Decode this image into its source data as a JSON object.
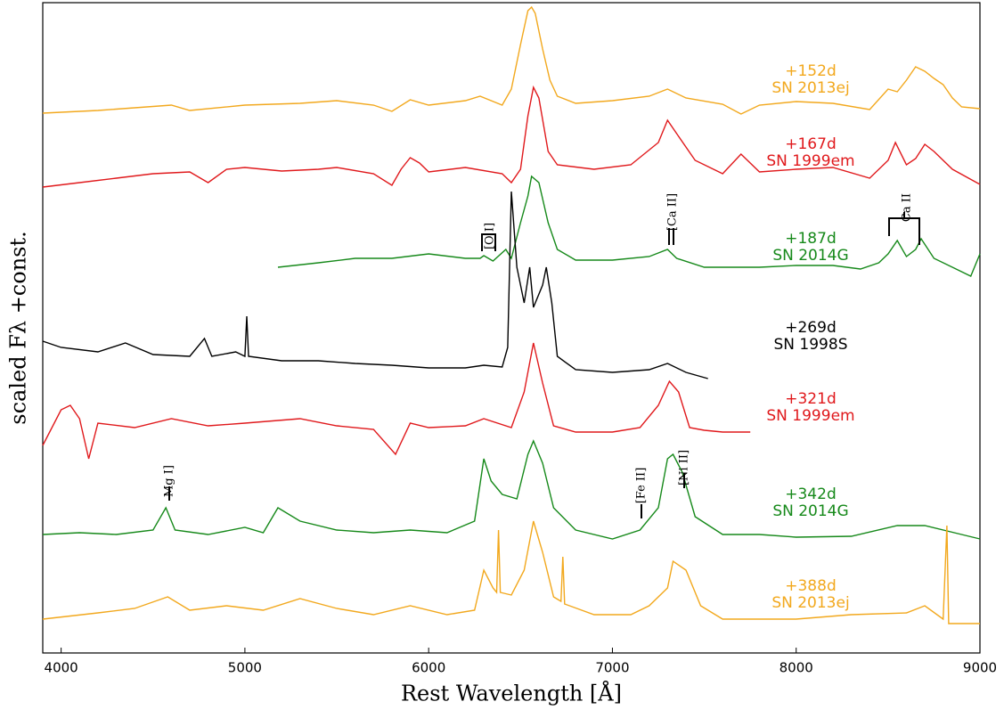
{
  "chart_data": {
    "type": "line",
    "xlabel": "Rest Wavelength [Å]",
    "ylabel": "scaled Fλ +const.",
    "xlim": [
      3900,
      9000
    ],
    "xticks": [
      4000,
      5000,
      6000,
      7000,
      8000,
      9000
    ],
    "ylim": [
      0,
      73
    ],
    "annotations": [
      "[O I]",
      "[Ca II]",
      "Ca II",
      "Mg I]",
      "[Fe II]",
      "[Ni II]"
    ],
    "series": [
      {
        "name": "SN 2013ej",
        "phase": "+152d",
        "color": "#f2a81d",
        "x": [
          3900,
          4200,
          4600,
          4700,
          5000,
          5300,
          5500,
          5700,
          5800,
          5900,
          6000,
          6200,
          6280,
          6400,
          6450,
          6500,
          6540,
          6560,
          6580,
          6620,
          6660,
          6700,
          6800,
          7000,
          7200,
          7300,
          7400,
          7600,
          7700,
          7800,
          8000,
          8200,
          8400,
          8500,
          8550,
          8600,
          8650,
          8700,
          8750,
          8800,
          8850,
          8900,
          9000
        ],
        "values": [
          60.6,
          60.9,
          61.5,
          60.9,
          61.5,
          61.7,
          62.0,
          61.5,
          60.8,
          62.1,
          61.5,
          62.0,
          62.5,
          61.5,
          63.3,
          68.3,
          72.1,
          72.5,
          71.8,
          67.8,
          64.3,
          62.5,
          61.7,
          62.0,
          62.5,
          63.3,
          62.3,
          61.6,
          60.5,
          61.5,
          61.9,
          61.7,
          61.0,
          63.3,
          63.0,
          64.3,
          65.8,
          65.3,
          64.5,
          63.8,
          62.3,
          61.3,
          61.1
        ]
      },
      {
        "name": "SN 1999em",
        "phase": "+167d",
        "color": "#e0191c",
        "x": [
          3900,
          4100,
          4300,
          4500,
          4700,
          4800,
          4900,
          5000,
          5200,
          5400,
          5500,
          5700,
          5800,
          5850,
          5900,
          5950,
          6000,
          6200,
          6400,
          6450,
          6500,
          6540,
          6570,
          6600,
          6650,
          6700,
          6900,
          7100,
          7250,
          7300,
          7350,
          7450,
          7600,
          7700,
          7800,
          8000,
          8200,
          8400,
          8500,
          8540,
          8600,
          8650,
          8700,
          8750,
          8850,
          9000
        ],
        "values": [
          52.3,
          52.8,
          53.3,
          53.8,
          54.0,
          52.8,
          54.3,
          54.5,
          54.1,
          54.3,
          54.5,
          53.8,
          52.5,
          54.3,
          55.6,
          55.0,
          54.0,
          54.5,
          53.8,
          52.8,
          54.3,
          60.3,
          63.5,
          62.3,
          56.3,
          54.8,
          54.3,
          54.8,
          57.3,
          59.8,
          58.3,
          55.3,
          53.8,
          56.0,
          54.0,
          54.3,
          54.5,
          53.3,
          55.3,
          57.3,
          54.8,
          55.5,
          57.1,
          56.3,
          54.3,
          52.6
        ]
      },
      {
        "name": "SN 2014G",
        "phase": "+187d",
        "color": "#16891a",
        "x": [
          5180,
          5400,
          5600,
          5800,
          6000,
          6200,
          6280,
          6300,
          6350,
          6420,
          6450,
          6500,
          6540,
          6560,
          6600,
          6650,
          6700,
          6800,
          7000,
          7200,
          7300,
          7350,
          7500,
          7800,
          8000,
          8200,
          8350,
          8450,
          8500,
          8550,
          8600,
          8650,
          8680,
          8750,
          8850,
          8950,
          9000
        ],
        "values": [
          43.3,
          43.8,
          44.3,
          44.3,
          44.8,
          44.3,
          44.3,
          44.6,
          44.0,
          45.3,
          44.3,
          48.3,
          51.3,
          53.5,
          52.8,
          48.3,
          45.3,
          44.1,
          44.1,
          44.5,
          45.3,
          44.3,
          43.3,
          43.3,
          43.5,
          43.5,
          43.1,
          43.8,
          44.8,
          46.3,
          44.5,
          45.3,
          46.5,
          44.3,
          43.3,
          42.3,
          44.8
        ]
      },
      {
        "name": "SN 1998S",
        "phase": "+269d",
        "color": "#000000",
        "x": [
          3900,
          4000,
          4200,
          4350,
          4500,
          4700,
          4780,
          4820,
          4950,
          5000,
          5010,
          5020,
          5200,
          5400,
          5600,
          5800,
          6000,
          6200,
          6300,
          6400,
          6430,
          6450,
          6480,
          6520,
          6550,
          6570,
          6620,
          6640,
          6670,
          6700,
          6800,
          7000,
          7200,
          7300,
          7400,
          7520
        ],
        "values": [
          35.0,
          34.3,
          33.8,
          34.8,
          33.5,
          33.3,
          35.3,
          33.3,
          33.8,
          33.3,
          37.8,
          33.3,
          32.8,
          32.8,
          32.5,
          32.3,
          32.0,
          32.0,
          32.3,
          32.1,
          34.3,
          51.8,
          43.3,
          39.3,
          43.3,
          38.8,
          41.3,
          43.3,
          39.3,
          33.3,
          31.8,
          31.5,
          31.8,
          32.5,
          31.5,
          30.8
        ]
      },
      {
        "name": "SN 1999em",
        "phase": "+321d",
        "color": "#e0191c",
        "x": [
          3900,
          4000,
          4050,
          4100,
          4150,
          4200,
          4400,
          4600,
          4800,
          5000,
          5300,
          5500,
          5700,
          5820,
          5900,
          6000,
          6200,
          6300,
          6450,
          6520,
          6570,
          6620,
          6680,
          6800,
          7000,
          7150,
          7250,
          7310,
          7360,
          7420,
          7500,
          7600,
          7750
        ],
        "values": [
          23.3,
          27.3,
          27.8,
          26.3,
          21.8,
          25.8,
          25.3,
          26.3,
          25.5,
          25.8,
          26.3,
          25.5,
          25.1,
          22.3,
          25.8,
          25.3,
          25.5,
          26.3,
          25.3,
          29.3,
          34.8,
          30.3,
          25.5,
          24.8,
          24.8,
          25.3,
          27.8,
          30.5,
          29.3,
          25.3,
          25.0,
          24.8,
          24.8
        ]
      },
      {
        "name": "SN 2014G",
        "phase": "+342d",
        "color": "#16891a",
        "x": [
          3900,
          4100,
          4300,
          4500,
          4570,
          4620,
          4800,
          5000,
          5100,
          5180,
          5300,
          5500,
          5700,
          5900,
          6100,
          6250,
          6300,
          6340,
          6400,
          6480,
          6540,
          6570,
          6620,
          6680,
          6800,
          7000,
          7150,
          7250,
          7300,
          7330,
          7380,
          7450,
          7600,
          7800,
          8000,
          8300,
          8550,
          8700,
          8900,
          9000
        ],
        "values": [
          13.3,
          13.5,
          13.3,
          13.8,
          16.3,
          13.8,
          13.3,
          14.1,
          13.5,
          16.3,
          14.8,
          13.8,
          13.5,
          13.8,
          13.5,
          14.8,
          21.8,
          19.3,
          17.8,
          17.3,
          22.3,
          23.8,
          21.3,
          16.3,
          13.8,
          12.8,
          13.8,
          16.3,
          21.8,
          22.3,
          20.3,
          15.3,
          13.3,
          13.3,
          13.0,
          13.1,
          14.3,
          14.3,
          13.3,
          12.8
        ]
      },
      {
        "name": "SN 2013ej",
        "phase": "+388d",
        "color": "#f2a81d",
        "x": [
          3900,
          4200,
          4400,
          4580,
          4700,
          4900,
          5100,
          5300,
          5500,
          5700,
          5900,
          6100,
          6250,
          6300,
          6350,
          6370,
          6380,
          6390,
          6450,
          6520,
          6570,
          6620,
          6680,
          6720,
          6730,
          6740,
          6900,
          7100,
          7200,
          7300,
          7330,
          7400,
          7480,
          7600,
          7800,
          8000,
          8300,
          8600,
          8700,
          8800,
          8820,
          8830,
          9000
        ],
        "values": [
          3.8,
          4.5,
          5.0,
          6.3,
          4.8,
          5.3,
          4.8,
          6.1,
          5.0,
          4.3,
          5.3,
          4.3,
          4.8,
          9.3,
          7.3,
          6.8,
          13.8,
          6.8,
          6.5,
          9.3,
          14.8,
          11.3,
          6.3,
          5.8,
          10.8,
          5.5,
          4.3,
          4.3,
          5.3,
          7.3,
          10.3,
          9.3,
          5.3,
          3.8,
          3.8,
          3.8,
          4.3,
          4.5,
          5.3,
          3.8,
          14.3,
          3.3,
          3.3
        ]
      }
    ]
  }
}
